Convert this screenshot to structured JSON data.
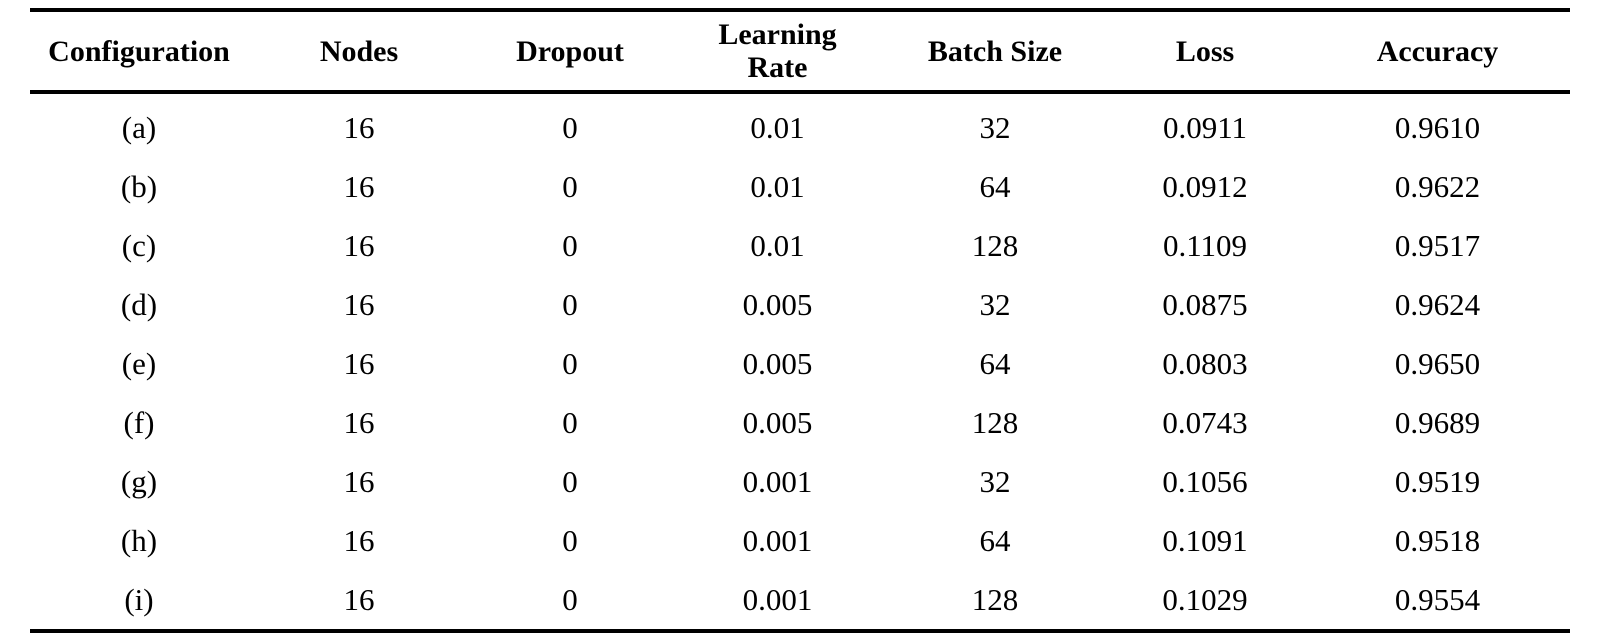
{
  "table": {
    "headers": [
      "Configuration",
      "Nodes",
      "Dropout",
      "Learning Rate",
      "Batch Size",
      "Loss",
      "Accuracy"
    ],
    "rows": [
      [
        "(a)",
        "16",
        "0",
        "0.01",
        "32",
        "0.0911",
        "0.9610"
      ],
      [
        "(b)",
        "16",
        "0",
        "0.01",
        "64",
        "0.0912",
        "0.9622"
      ],
      [
        "(c)",
        "16",
        "0",
        "0.01",
        "128",
        "0.1109",
        "0.9517"
      ],
      [
        "(d)",
        "16",
        "0",
        "0.005",
        "32",
        "0.0875",
        "0.9624"
      ],
      [
        "(e)",
        "16",
        "0",
        "0.005",
        "64",
        "0.0803",
        "0.9650"
      ],
      [
        "(f)",
        "16",
        "0",
        "0.005",
        "128",
        "0.0743",
        "0.9689"
      ],
      [
        "(g)",
        "16",
        "0",
        "0.001",
        "32",
        "0.1056",
        "0.9519"
      ],
      [
        "(h)",
        "16",
        "0",
        "0.001",
        "64",
        "0.1091",
        "0.9518"
      ],
      [
        "(i)",
        "16",
        "0",
        "0.001",
        "128",
        "0.1029",
        "0.9554"
      ]
    ]
  }
}
